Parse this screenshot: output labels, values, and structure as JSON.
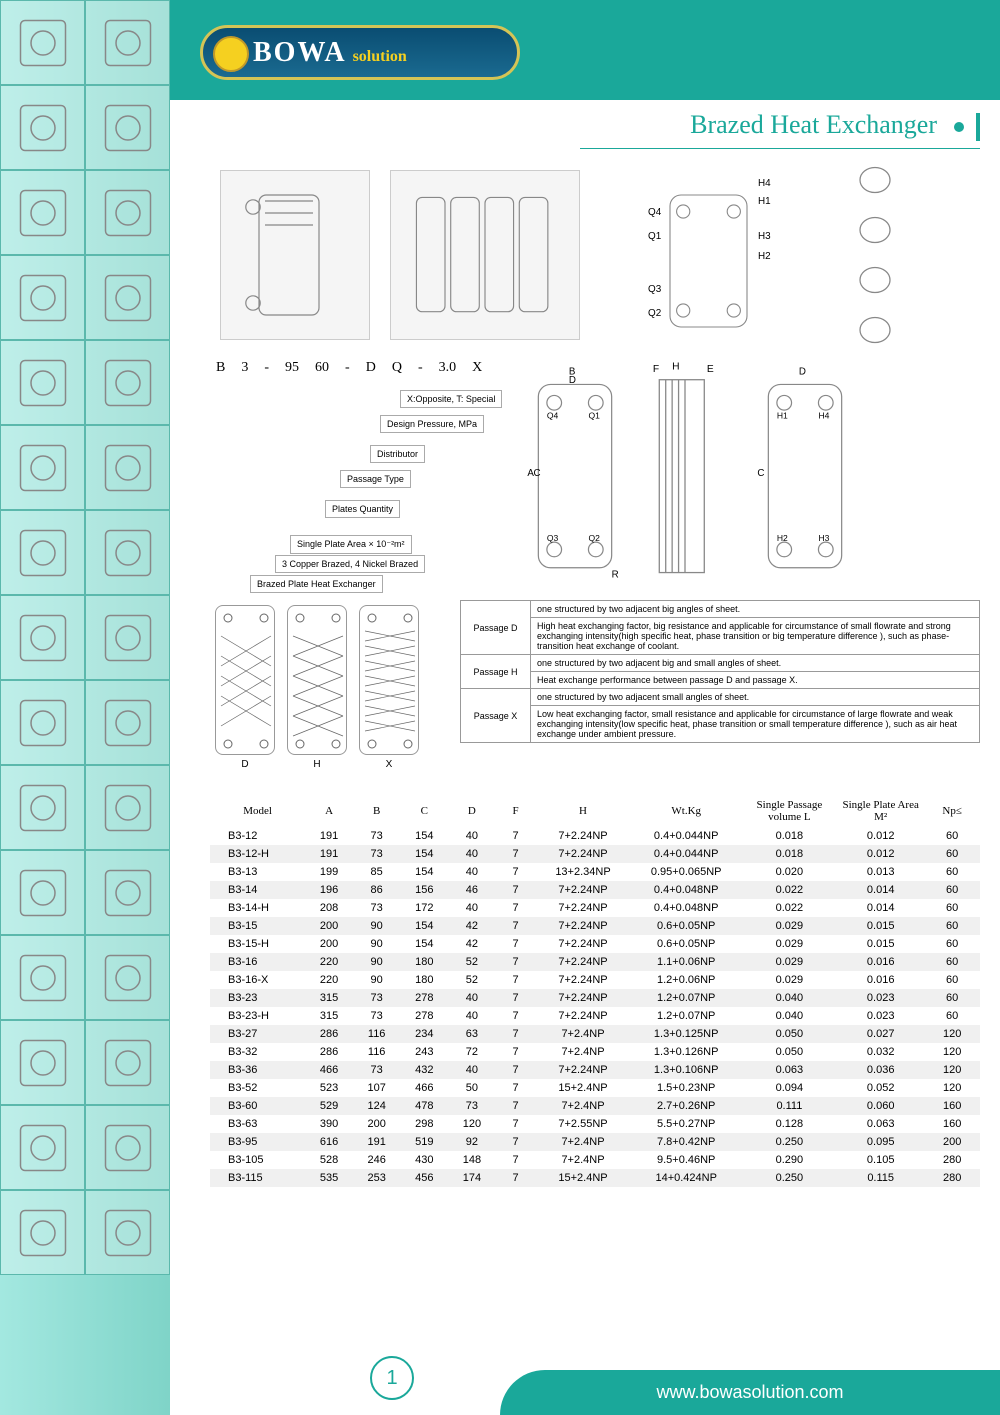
{
  "brand": {
    "name": "BOWA",
    "suffix": "solution"
  },
  "title": "Brazed Heat Exchanger",
  "page_number": "1",
  "footer_url": "www.bowasolution.com",
  "code_example": {
    "parts": [
      "B",
      "3",
      "-",
      "95",
      "60",
      "-",
      "D",
      "Q",
      "-",
      "3.0",
      "X"
    ]
  },
  "breakdown_labels": {
    "x": "X:Opposite, T: Special",
    "pressure": "Design Pressure, MPa",
    "distributor": "Distributor",
    "passage": "Passage Type",
    "plates": "Plates Quantity",
    "area": "Single Plate Area × 10⁻²m²",
    "brazing": "3 Copper Brazed, 4 Nickel Brazed",
    "type": "Brazed Plate Heat Exchanger"
  },
  "passage_desc": {
    "d_header": "one structured by two adjacent big angles of sheet.",
    "d_body": "High heat exchanging factor, big resistance and applicable for circumstance of small flowrate and strong exchanging intensity(high specific heat, phase transition or big temperature difference ), such as phase-transition heat exchange of coolant.",
    "h_header": "one structured by two adjacent big and small angles of sheet.",
    "h_body": "Heat exchange performance between passage D and passage X.",
    "x_header": "one structured by two adjacent small angles of sheet.",
    "x_body": "Low heat exchanging factor, small resistance and applicable for circumstance of large flowrate and weak exchanging intensity(low specific heat, phase transition or small temperature difference ), such as air heat exchange under ambient pressure.",
    "label_d": "Passage D",
    "label_h": "Passage H",
    "label_x": "Passage X"
  },
  "pattern_labels": {
    "d": "D",
    "h": "H",
    "x": "X"
  },
  "spec_headers": [
    "Model",
    "A",
    "B",
    "C",
    "D",
    "F",
    "H",
    "Wt.Kg",
    "Single Passage volume L",
    "Single Plate Area M²",
    "Np≤"
  ],
  "spec_rows": [
    [
      "B3-12",
      "191",
      "73",
      "154",
      "40",
      "7",
      "7+2.24NP",
      "0.4+0.044NP",
      "0.018",
      "0.012",
      "60"
    ],
    [
      "B3-12-H",
      "191",
      "73",
      "154",
      "40",
      "7",
      "7+2.24NP",
      "0.4+0.044NP",
      "0.018",
      "0.012",
      "60"
    ],
    [
      "B3-13",
      "199",
      "85",
      "154",
      "40",
      "7",
      "13+2.34NP",
      "0.95+0.065NP",
      "0.020",
      "0.013",
      "60"
    ],
    [
      "B3-14",
      "196",
      "86",
      "156",
      "46",
      "7",
      "7+2.24NP",
      "0.4+0.048NP",
      "0.022",
      "0.014",
      "60"
    ],
    [
      "B3-14-H",
      "208",
      "73",
      "172",
      "40",
      "7",
      "7+2.24NP",
      "0.4+0.048NP",
      "0.022",
      "0.014",
      "60"
    ],
    [
      "B3-15",
      "200",
      "90",
      "154",
      "42",
      "7",
      "7+2.24NP",
      "0.6+0.05NP",
      "0.029",
      "0.015",
      "60"
    ],
    [
      "B3-15-H",
      "200",
      "90",
      "154",
      "42",
      "7",
      "7+2.24NP",
      "0.6+0.05NP",
      "0.029",
      "0.015",
      "60"
    ],
    [
      "B3-16",
      "220",
      "90",
      "180",
      "52",
      "7",
      "7+2.24NP",
      "1.1+0.06NP",
      "0.029",
      "0.016",
      "60"
    ],
    [
      "B3-16-X",
      "220",
      "90",
      "180",
      "52",
      "7",
      "7+2.24NP",
      "1.2+0.06NP",
      "0.029",
      "0.016",
      "60"
    ],
    [
      "B3-23",
      "315",
      "73",
      "278",
      "40",
      "7",
      "7+2.24NP",
      "1.2+0.07NP",
      "0.040",
      "0.023",
      "60"
    ],
    [
      "B3-23-H",
      "315",
      "73",
      "278",
      "40",
      "7",
      "7+2.24NP",
      "1.2+0.07NP",
      "0.040",
      "0.023",
      "60"
    ],
    [
      "B3-27",
      "286",
      "116",
      "234",
      "63",
      "7",
      "7+2.4NP",
      "1.3+0.125NP",
      "0.050",
      "0.027",
      "120"
    ],
    [
      "B3-32",
      "286",
      "116",
      "243",
      "72",
      "7",
      "7+2.4NP",
      "1.3+0.126NP",
      "0.050",
      "0.032",
      "120"
    ],
    [
      "B3-36",
      "466",
      "73",
      "432",
      "40",
      "7",
      "7+2.24NP",
      "1.3+0.106NP",
      "0.063",
      "0.036",
      "120"
    ],
    [
      "B3-52",
      "523",
      "107",
      "466",
      "50",
      "7",
      "15+2.4NP",
      "1.5+0.23NP",
      "0.094",
      "0.052",
      "120"
    ],
    [
      "B3-60",
      "529",
      "124",
      "478",
      "73",
      "7",
      "7+2.4NP",
      "2.7+0.26NP",
      "0.111",
      "0.060",
      "160"
    ],
    [
      "B3-63",
      "390",
      "200",
      "298",
      "120",
      "7",
      "7+2.55NP",
      "5.5+0.27NP",
      "0.128",
      "0.063",
      "160"
    ],
    [
      "B3-95",
      "616",
      "191",
      "519",
      "92",
      "7",
      "7+2.4NP",
      "7.8+0.42NP",
      "0.250",
      "0.095",
      "200"
    ],
    [
      "B3-105",
      "528",
      "246",
      "430",
      "148",
      "7",
      "7+2.4NP",
      "9.5+0.46NP",
      "0.290",
      "0.105",
      "280"
    ],
    [
      "B3-115",
      "535",
      "253",
      "456",
      "174",
      "7",
      "15+2.4NP",
      "14+0.424NP",
      "0.250",
      "0.115",
      "280"
    ]
  ],
  "port_labels": {
    "q1": "Q1",
    "q2": "Q2",
    "q3": "Q3",
    "q4": "Q4",
    "h1": "H1",
    "h2": "H2",
    "h3": "H3",
    "h4": "H4"
  },
  "colors": {
    "teal": "#1aa89a",
    "sidebar_start": "#a3e8e0",
    "sidebar_end": "#7fd4c8",
    "gold": "#d4c456",
    "navy": "#0a4d72"
  }
}
